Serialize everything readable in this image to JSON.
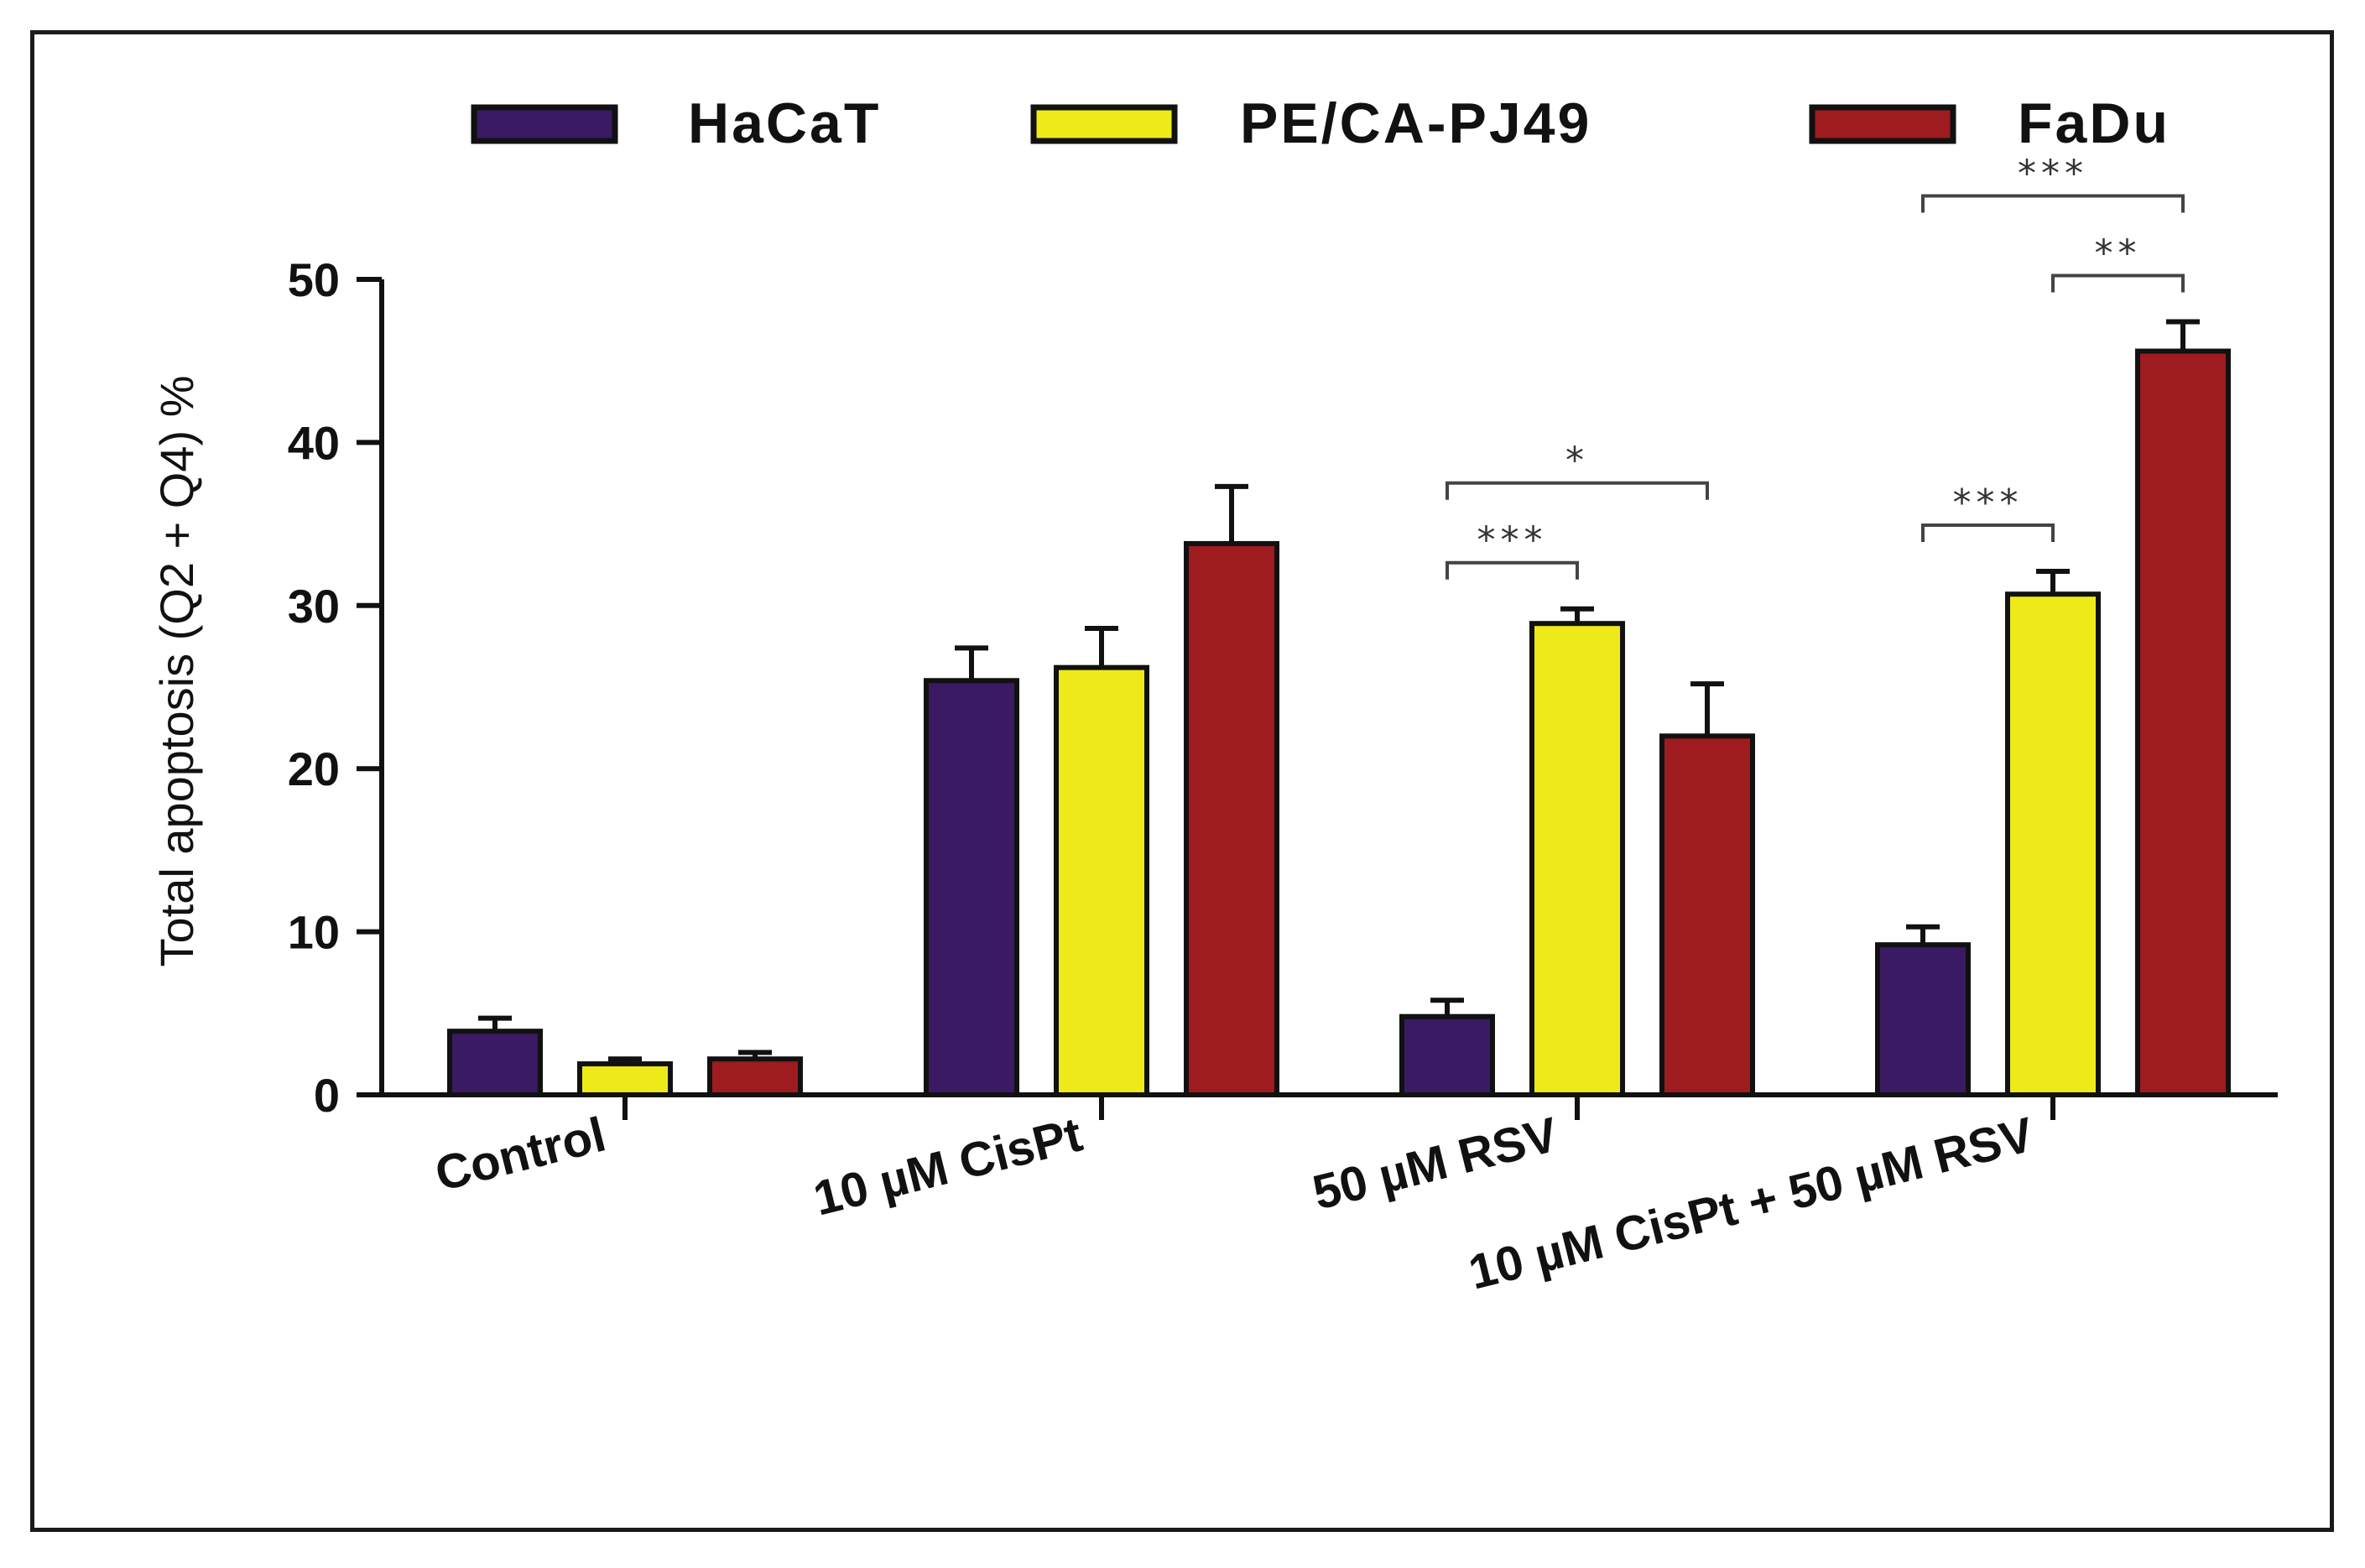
{
  "chart_data": {
    "type": "bar",
    "title": "",
    "xlabel": "",
    "ylabel": "Total apoptosis (Q2 + Q4) %",
    "ylim": [
      0,
      50
    ],
    "yticks": [
      0,
      10,
      20,
      30,
      40,
      50
    ],
    "grid": false,
    "legend_position": "top",
    "categories": [
      "Control",
      "10 µM CisPt",
      "50 µM RSV",
      "10 µM CisPt + 50 µM RSV"
    ],
    "series": [
      {
        "name": "HaCaT",
        "color": "#3a1a63",
        "values": [
          3.9,
          25.4,
          4.8,
          9.2
        ],
        "errors": [
          0.8,
          2.0,
          1.0,
          1.1
        ]
      },
      {
        "name": "PE/CA-PJ49",
        "color": "#eeea1a",
        "values": [
          1.9,
          26.2,
          28.9,
          30.7
        ],
        "errors": [
          0.3,
          2.4,
          0.9,
          1.4
        ]
      },
      {
        "name": "FaDu",
        "color": "#9e1b1f",
        "values": [
          2.2,
          33.8,
          22.0,
          45.6
        ],
        "errors": [
          0.4,
          3.5,
          3.2,
          1.8
        ]
      }
    ],
    "significance": [
      {
        "category": 2,
        "from_series": 0,
        "to_series": 1,
        "label": "***"
      },
      {
        "category": 2,
        "from_series": 0,
        "to_series": 2,
        "label": "*"
      },
      {
        "category": 3,
        "from_series": 0,
        "to_series": 1,
        "label": "***"
      },
      {
        "category": 3,
        "from_series": 1,
        "to_series": 2,
        "label": "**"
      },
      {
        "category": 3,
        "from_series": 0,
        "to_series": 2,
        "label": "***"
      }
    ]
  }
}
